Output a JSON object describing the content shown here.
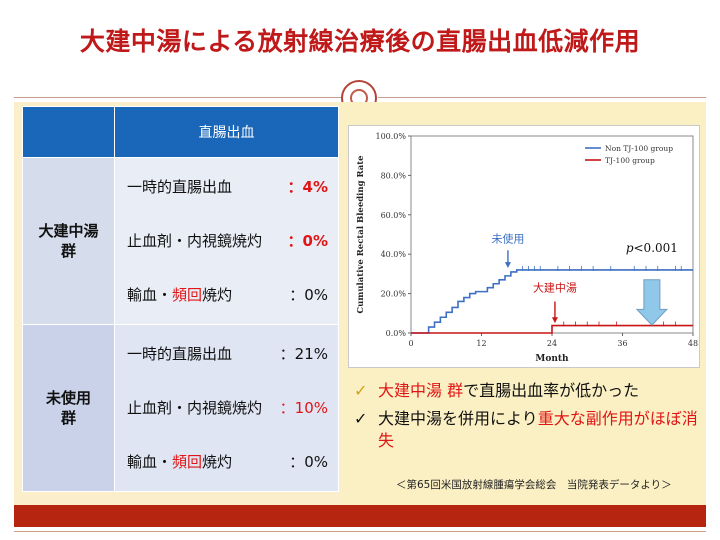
{
  "title": "大建中湯による放射線治療後の直腸出血低減作用",
  "table": {
    "header": "直腸出血",
    "groups": [
      {
        "label_line1": "大建中湯",
        "label_line2": "群",
        "rows": [
          {
            "label": "一時的直腸出血",
            "value": "：4%"
          },
          {
            "label": "止血剤・内視鏡焼灼",
            "value": "：0%"
          },
          {
            "label_a": "輸血・",
            "label_b": "頻回",
            "label_c": "焼灼",
            "value": "：0%"
          }
        ]
      },
      {
        "label_line1": "未使用",
        "label_line2": "群",
        "rows": [
          {
            "label": "一時的直腸出血",
            "value": "：21%"
          },
          {
            "label": "止血剤・内視鏡焼灼",
            "value": "：10%"
          },
          {
            "label_a": "輸血・",
            "label_b": "頻回",
            "label_c": "焼灼",
            "value": "：0%"
          }
        ]
      }
    ]
  },
  "chart_data": {
    "type": "line",
    "step": true,
    "xlabel": "Month",
    "ylabel": "Cumulative Rectal Bleeding Rate",
    "xlim": [
      0,
      48
    ],
    "ylim": [
      0,
      100
    ],
    "xticks": [
      0,
      12,
      24,
      36,
      48
    ],
    "yticks": [
      "0.0%",
      "20.0%",
      "40.0%",
      "60.0%",
      "80.0%",
      "100.0%"
    ],
    "legend_position": "top-right",
    "series": [
      {
        "name": "Non TJ-100 group",
        "color": "#3d6fc2",
        "x": [
          0,
          3,
          3,
          4,
          5,
          6,
          7,
          8,
          9,
          10,
          11,
          12,
          13,
          14,
          15,
          16,
          17,
          18,
          48
        ],
        "y": [
          0,
          0,
          3,
          5.5,
          8,
          10.5,
          13,
          16,
          18,
          20,
          21,
          21,
          23,
          25,
          27,
          29,
          31,
          32,
          32
        ]
      },
      {
        "name": "TJ-100 group",
        "color": "#c81414",
        "x": [
          0,
          24,
          24,
          48
        ],
        "y": [
          0,
          0,
          3.8,
          3.8
        ]
      }
    ],
    "annotations": {
      "non_tj_label": "未使用",
      "tj_label": "大建中湯",
      "p_value": "p<0.001",
      "p_value_italic": "p",
      "p_value_rest": "<0.001"
    }
  },
  "bullets": [
    {
      "check": "✓",
      "a": "大建中湯 群",
      "b": "で直腸出血率が低かった"
    },
    {
      "check": "✓",
      "a": "大建中湯を併用により",
      "b": "重大な副作用",
      "c": "がほぼ消失"
    }
  ],
  "note": "＜第65回米国放射線腫瘍学会総会　当院発表データより＞",
  "colors": {
    "title": "#c0191a",
    "header": "#1a66b8",
    "footer": "#b5250f",
    "accent_red": "#e01515"
  }
}
